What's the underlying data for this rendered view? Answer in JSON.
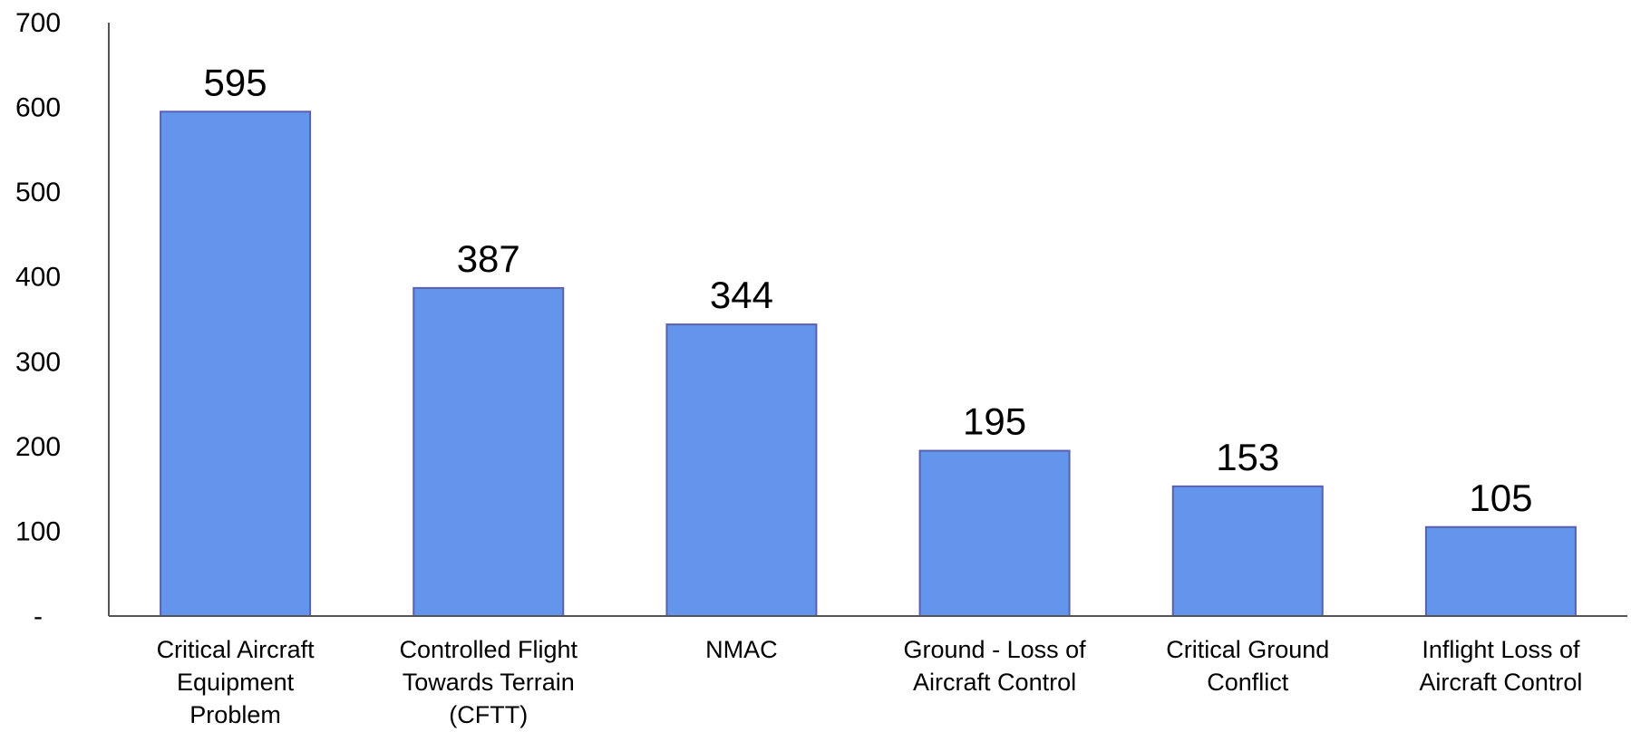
{
  "chart_data": {
    "type": "bar",
    "title": "",
    "xlabel": "",
    "ylabel": "",
    "categories": [
      "Critical Aircraft Equipment Problem",
      "Controlled Flight Towards Terrain (CFTT)",
      "NMAC",
      "Ground - Loss of Aircraft Control",
      "Critical Ground Conflict",
      "Inflight Loss of Aircraft Control"
    ],
    "category_lines": [
      [
        "Critical Aircraft",
        "Equipment",
        "Problem"
      ],
      [
        "Controlled Flight",
        "Towards Terrain",
        "(CFTT)"
      ],
      [
        "NMAC"
      ],
      [
        "Ground - Loss of",
        "Aircraft Control"
      ],
      [
        "Critical Ground",
        "Conflict"
      ],
      [
        "Inflight Loss of",
        "Aircraft Control"
      ]
    ],
    "values": [
      595,
      387,
      344,
      195,
      153,
      105
    ],
    "data_labels": [
      "595",
      "387",
      "344",
      "195",
      "153",
      "105"
    ],
    "ylim": [
      0,
      700
    ],
    "yticks": [
      0,
      100,
      200,
      300,
      400,
      500,
      600,
      700
    ],
    "ytick_labels": [
      "-",
      "100",
      "200",
      "300",
      "400",
      "500",
      "600",
      "700"
    ],
    "grid": false,
    "legend": "none",
    "colors": {
      "bar_fill": "#6495ED",
      "bar_stroke": "#5A5FB0",
      "axis": "#555555"
    }
  }
}
